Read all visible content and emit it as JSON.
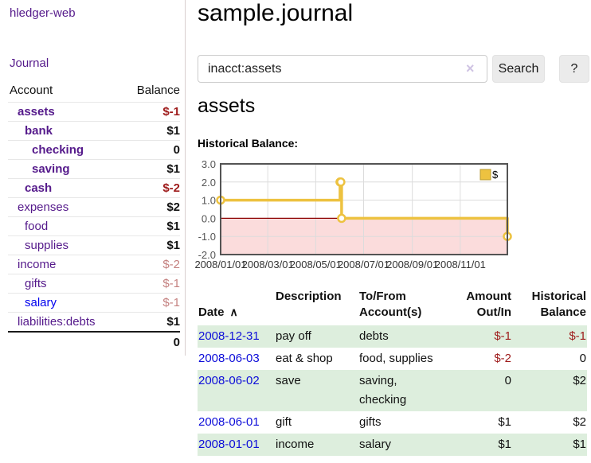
{
  "app": {
    "title": "hledger-web"
  },
  "sidebar": {
    "nav_journal": "Journal",
    "header": {
      "account": "Account",
      "balance": "Balance"
    },
    "accounts": [
      {
        "name": "assets",
        "balance": "$-1"
      },
      {
        "name": "bank",
        "balance": "$1"
      },
      {
        "name": "checking",
        "balance": "0"
      },
      {
        "name": "saving",
        "balance": "$1"
      },
      {
        "name": "cash",
        "balance": "$-2"
      },
      {
        "name": "expenses",
        "balance": "$2"
      },
      {
        "name": "food",
        "balance": "$1"
      },
      {
        "name": "supplies",
        "balance": "$1"
      },
      {
        "name": "income",
        "balance": "$-2"
      },
      {
        "name": "gifts",
        "balance": "$-1"
      },
      {
        "name": "salary",
        "balance": "$-1"
      },
      {
        "name": "liabilities:debts",
        "balance": "$1"
      }
    ],
    "total": "0"
  },
  "main": {
    "title": "sample.journal",
    "search": {
      "value": "inacct:assets",
      "clear": "×",
      "search_button": "Search",
      "help_button": "?"
    },
    "heading": "assets",
    "chart_title": "Historical Balance:"
  },
  "chart_data": {
    "type": "line",
    "title": "Historical Balance",
    "step": true,
    "legend": "$",
    "series": [
      {
        "name": "$",
        "points": [
          [
            "2008-01-01",
            1
          ],
          [
            "2008-06-01",
            2
          ],
          [
            "2008-06-02",
            2
          ],
          [
            "2008-06-03",
            0
          ],
          [
            "2008-12-31",
            -1
          ]
        ]
      }
    ],
    "x_ticks": [
      "2008/01/01",
      "2008/03/01",
      "2008/05/01",
      "2008/07/01",
      "2008/09/01",
      "2008/11/01"
    ],
    "y_ticks": [
      3.0,
      2.0,
      1.0,
      0.0,
      -1.0,
      -2.0
    ],
    "ylim": [
      -2,
      3
    ],
    "xlim": [
      "2008-01-01",
      "2008-12-31"
    ],
    "grid": true,
    "legend_position": "top-right",
    "line_color": "#edc240",
    "zero_line_color": "#8b0000",
    "negative_region_color": "#fbdcdc"
  },
  "register": {
    "columns": {
      "date": "Date",
      "sort_icon": "∧",
      "description": "Description",
      "accounts": "To/From\nAccount(s)",
      "amount": "Amount\nOut/In",
      "balance": "Historical\nBalance"
    },
    "rows": [
      {
        "date": "2008-12-31",
        "description": "pay off",
        "accounts": "debts",
        "amount": "$-1",
        "balance": "$-1"
      },
      {
        "date": "2008-06-03",
        "description": "eat & shop",
        "accounts": "food, supplies",
        "amount": "$-2",
        "balance": "0"
      },
      {
        "date": "2008-06-02",
        "description": "save",
        "accounts": "saving,\nchecking",
        "amount": "0",
        "balance": "$2"
      },
      {
        "date": "2008-06-01",
        "description": "gift",
        "accounts": "gifts",
        "amount": "$1",
        "balance": "$2"
      },
      {
        "date": "2008-01-01",
        "description": "income",
        "accounts": "salary",
        "amount": "$1",
        "balance": "$1"
      }
    ]
  }
}
